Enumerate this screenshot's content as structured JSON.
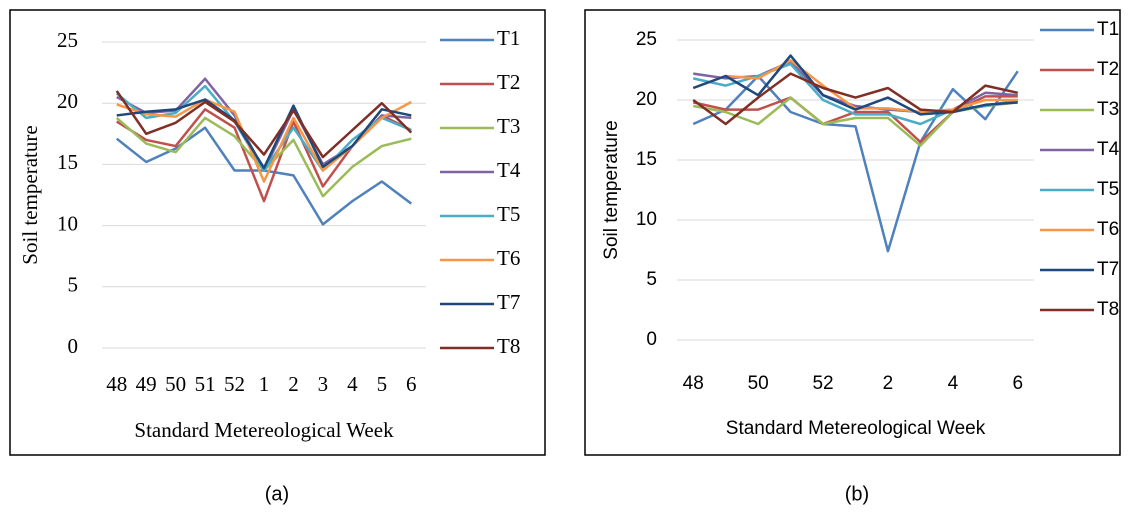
{
  "chart_data": [
    {
      "type": "line",
      "caption": "(a)",
      "y_label": "Soil temperature",
      "x_label": "Standard Metereological Week",
      "categories": [
        "48",
        "49",
        "50",
        "51",
        "52",
        "1",
        "2",
        "3",
        "4",
        "5",
        "6"
      ],
      "ylim": [
        0,
        25
      ],
      "yticks": [
        0,
        5,
        10,
        15,
        20,
        25
      ],
      "grid": true,
      "legend": "right",
      "series": [
        {
          "name": "T1",
          "color": "#4f81bd",
          "values": [
            17.1,
            15.2,
            16.3,
            18.0,
            14.5,
            14.5,
            14.1,
            10.1,
            12.0,
            13.6,
            11.8
          ]
        },
        {
          "name": "T2",
          "color": "#c0504d",
          "values": [
            18.5,
            17.0,
            16.5,
            19.5,
            18.0,
            12.0,
            18.5,
            13.2,
            16.5,
            19.0,
            17.8
          ]
        },
        {
          "name": "T3",
          "color": "#9bbb59",
          "values": [
            18.8,
            16.7,
            16.0,
            18.8,
            17.3,
            14.5,
            17.0,
            12.4,
            14.8,
            16.5,
            17.1
          ]
        },
        {
          "name": "T4",
          "color": "#8064a2",
          "values": [
            20.5,
            19.2,
            19.4,
            22.0,
            19.0,
            14.5,
            19.5,
            15.0,
            16.5,
            19.0,
            18.8
          ]
        },
        {
          "name": "T5",
          "color": "#4bacc6",
          "values": [
            20.8,
            18.8,
            19.2,
            21.4,
            18.5,
            14.5,
            18.0,
            14.5,
            17.0,
            18.8,
            17.8
          ]
        },
        {
          "name": "T6",
          "color": "#f79646",
          "values": [
            19.9,
            19.1,
            18.9,
            20.3,
            19.3,
            13.6,
            18.8,
            14.5,
            16.5,
            18.8,
            20.1
          ]
        },
        {
          "name": "T7",
          "color": "#1f497d",
          "values": [
            19.0,
            19.3,
            19.5,
            20.3,
            18.6,
            14.7,
            19.8,
            14.8,
            16.5,
            19.5,
            19.0
          ]
        },
        {
          "name": "T8",
          "color": "#7f2f25",
          "values": [
            21.0,
            17.5,
            18.4,
            20.1,
            18.5,
            15.8,
            19.4,
            15.6,
            17.8,
            20.0,
            17.6
          ]
        }
      ]
    },
    {
      "type": "line",
      "caption": "(b)",
      "y_label": "Soil temperature",
      "x_label": "Standard Metereological Week",
      "categories": [
        "48",
        null,
        "50",
        null,
        "52",
        null,
        "2",
        null,
        "4",
        null,
        "6"
      ],
      "ylim": [
        0,
        25
      ],
      "yticks": [
        0,
        5,
        10,
        15,
        20,
        25
      ],
      "grid": true,
      "legend": "right",
      "series": [
        {
          "name": "T1",
          "color": "#4f81bd",
          "values": [
            18.0,
            19.2,
            22.0,
            19.0,
            18.0,
            17.8,
            7.4,
            16.5,
            20.9,
            18.4,
            22.4
          ]
        },
        {
          "name": "T2",
          "color": "#c0504d",
          "values": [
            19.8,
            19.2,
            19.2,
            20.2,
            18.0,
            19.0,
            19.0,
            16.5,
            19.0,
            20.3,
            20.3
          ]
        },
        {
          "name": "T3",
          "color": "#9bbb59",
          "values": [
            19.5,
            19.0,
            18.0,
            20.2,
            18.0,
            18.5,
            18.5,
            16.2,
            19.0,
            19.5,
            19.8
          ]
        },
        {
          "name": "T4",
          "color": "#8064a2",
          "values": [
            22.2,
            21.8,
            22.0,
            23.2,
            20.4,
            19.5,
            19.2,
            19.0,
            19.2,
            20.6,
            20.4
          ]
        },
        {
          "name": "T5",
          "color": "#4bacc6",
          "values": [
            21.8,
            21.2,
            22.0,
            23.0,
            20.0,
            18.8,
            18.8,
            18.0,
            19.2,
            19.5,
            20.0
          ]
        },
        {
          "name": "T6",
          "color": "#f79646",
          "values": [
            21.0,
            22.0,
            21.8,
            23.3,
            21.2,
            19.3,
            19.3,
            19.0,
            19.2,
            20.0,
            20.0
          ]
        },
        {
          "name": "T7",
          "color": "#1f497d",
          "values": [
            21.0,
            22.0,
            20.4,
            23.7,
            20.4,
            19.2,
            20.2,
            18.8,
            19.0,
            19.6,
            19.8
          ]
        },
        {
          "name": "T8",
          "color": "#7f2f25",
          "values": [
            20.0,
            18.0,
            20.2,
            22.2,
            21.0,
            20.2,
            21.0,
            19.2,
            19.0,
            21.2,
            20.6
          ]
        }
      ]
    }
  ]
}
